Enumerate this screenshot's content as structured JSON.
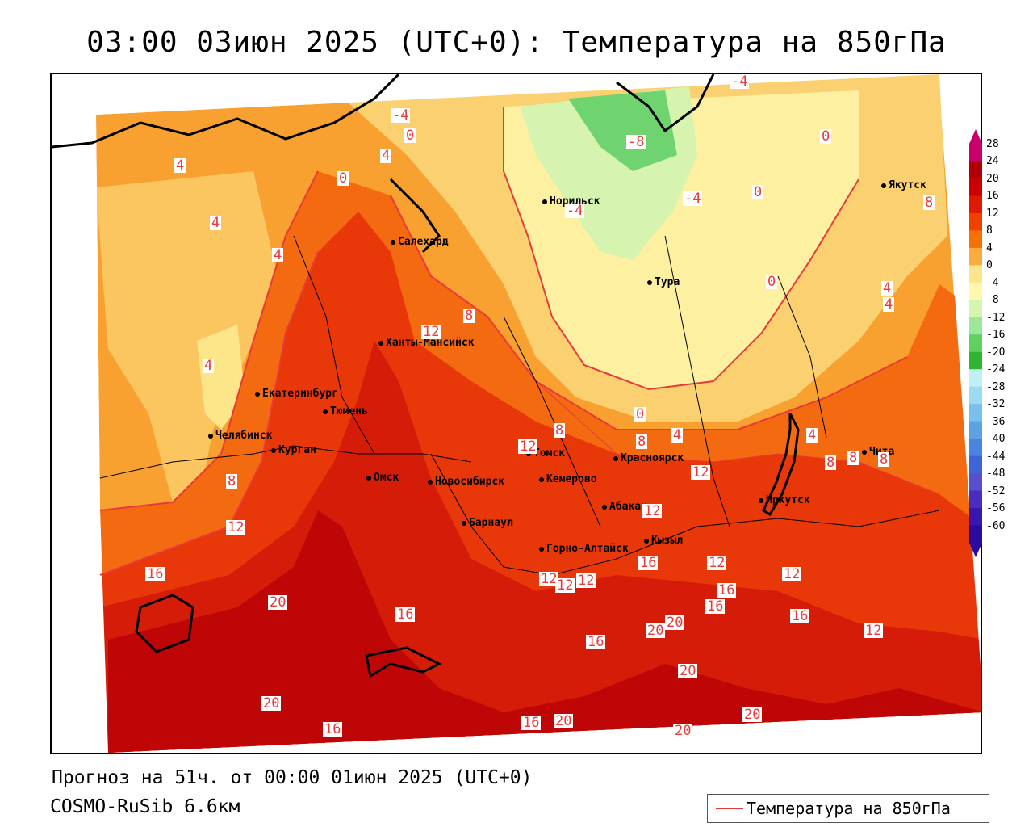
{
  "title": "03:00 03июн 2025 (UTC+0): Температура на 850гПа",
  "footer": {
    "forecast": "Прогноз на 51ч. от 00:00 01июн 2025 (UTC+0)",
    "model": "COSMO-RuSib 6.6км"
  },
  "legend": {
    "label": "Температура на 850гПа",
    "line_color": "#e83a3a"
  },
  "colorbar": {
    "ticks": [
      "28",
      "24",
      "20",
      "16",
      "12",
      "8",
      "4",
      "0",
      "-4",
      "-8",
      "-12",
      "-16",
      "-20",
      "-24",
      "-28",
      "-32",
      "-36",
      "-40",
      "-44",
      "-48",
      "-52",
      "-56",
      "-60"
    ],
    "colors": [
      "#c8006e",
      "#b00000",
      "#cc0000",
      "#e01a00",
      "#f04000",
      "#f87000",
      "#fbaa40",
      "#fde68a",
      "#fdf7b0",
      "#d6f5b0",
      "#9ee69a",
      "#5ed15e",
      "#2fb52f",
      "#bff0f5",
      "#9ddcf0",
      "#7ac0ec",
      "#5ea2e6",
      "#4a84de",
      "#3e66d8",
      "#5a4ed0",
      "#4a2cc0",
      "#3a16b0",
      "#2a0aa0"
    ]
  },
  "cities": [
    {
      "name": "Салехард"
    },
    {
      "name": "Норильск"
    },
    {
      "name": "Тура"
    },
    {
      "name": "Якутск"
    },
    {
      "name": "Ханты-Мансийск"
    },
    {
      "name": "Екатеринбург"
    },
    {
      "name": "Тюмень"
    },
    {
      "name": "Челябинск"
    },
    {
      "name": "Курган"
    },
    {
      "name": "Омск"
    },
    {
      "name": "Новосибирск"
    },
    {
      "name": "Томск"
    },
    {
      "name": "Кемерово"
    },
    {
      "name": "Красноярск"
    },
    {
      "name": "Барнаул"
    },
    {
      "name": "Абакан"
    },
    {
      "name": "Горно-Алтайск"
    },
    {
      "name": "Кызыл"
    },
    {
      "name": "Иркутск"
    },
    {
      "name": "Чита"
    }
  ],
  "contour_labels": [
    "-4",
    "0",
    "4",
    "4",
    "4",
    "4",
    "4",
    "0",
    "-4",
    "-8",
    "-4",
    "-4",
    "0",
    "0",
    "0",
    "8",
    "4",
    "8",
    "12",
    "12",
    "8",
    "0",
    "8",
    "4",
    "12",
    "4",
    "8",
    "8",
    "8",
    "8",
    "12",
    "12",
    "12",
    "16",
    "12",
    "16",
    "12",
    "12",
    "12",
    "16",
    "20",
    "16",
    "20",
    "16",
    "16",
    "16",
    "20",
    "20",
    "20",
    "20",
    "12",
    "16",
    "20",
    "20",
    "16",
    "4"
  ]
}
